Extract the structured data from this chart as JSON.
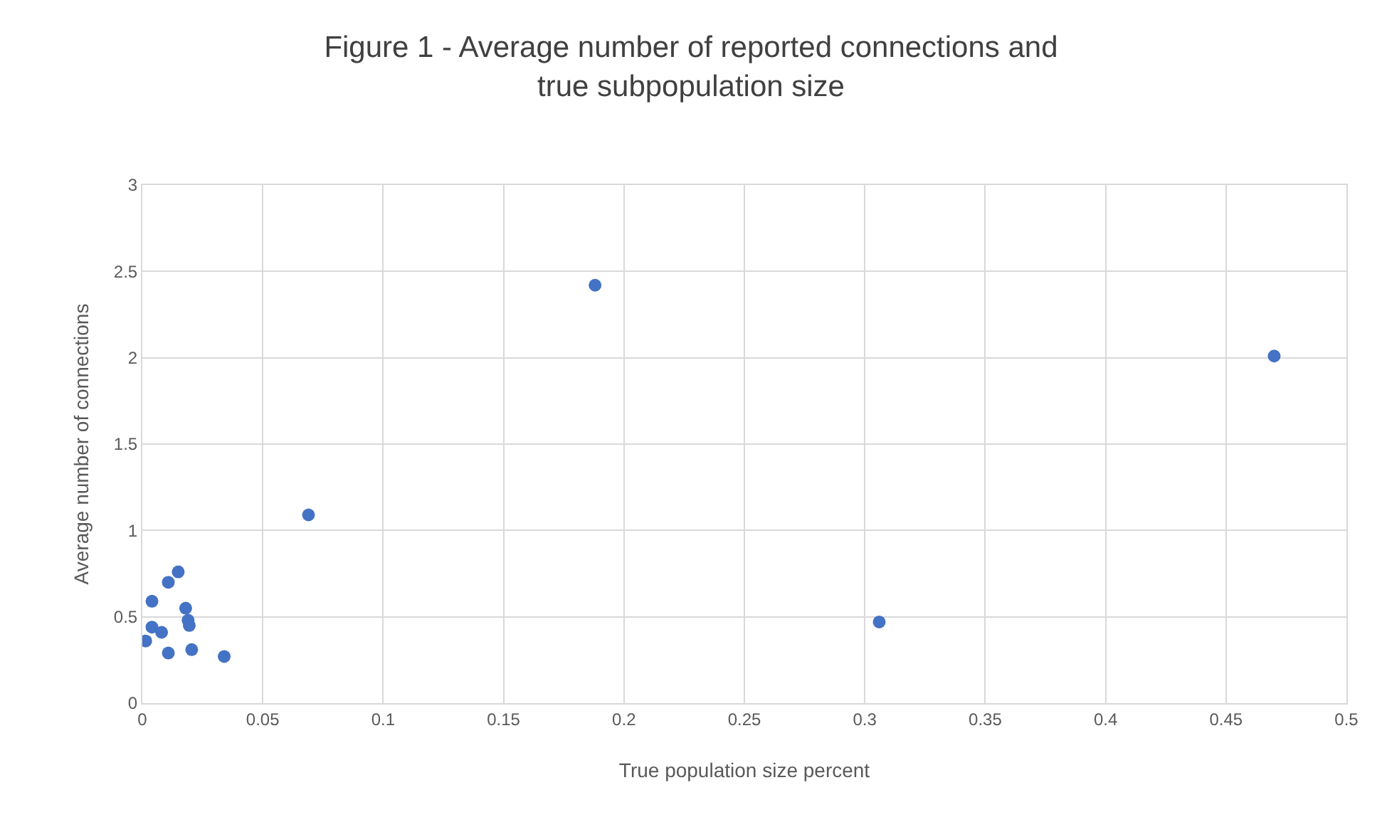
{
  "chart_data": {
    "type": "scatter",
    "title": "Figure 1 - Average number of reported connections and\ntrue subpopulation size",
    "xlabel": "True population size percent",
    "ylabel": "Average number of connections",
    "x": [
      0.0149,
      0.0108,
      0.004,
      0.018,
      0.019,
      0.0195,
      0.004,
      0.008,
      0.0014,
      0.0108,
      0.0205,
      0.034,
      0.069,
      0.188,
      0.306,
      0.47
    ],
    "series": [
      {
        "color": "#4472c4",
        "values": [
          0.76,
          0.7,
          0.59,
          0.55,
          0.48,
          0.45,
          0.44,
          0.41,
          0.36,
          0.29,
          0.31,
          0.27,
          1.09,
          2.42,
          0.47,
          2.01
        ]
      }
    ],
    "xlim": [
      0,
      0.5
    ],
    "xticks": [
      0,
      0.05,
      0.1,
      0.15,
      0.2,
      0.25,
      0.3,
      0.35,
      0.4,
      0.45,
      0.5
    ],
    "ylim": [
      0,
      3
    ],
    "yticks": [
      0,
      0.5,
      1,
      1.5,
      2,
      2.5,
      3
    ],
    "grid": true,
    "marker": "circle"
  }
}
